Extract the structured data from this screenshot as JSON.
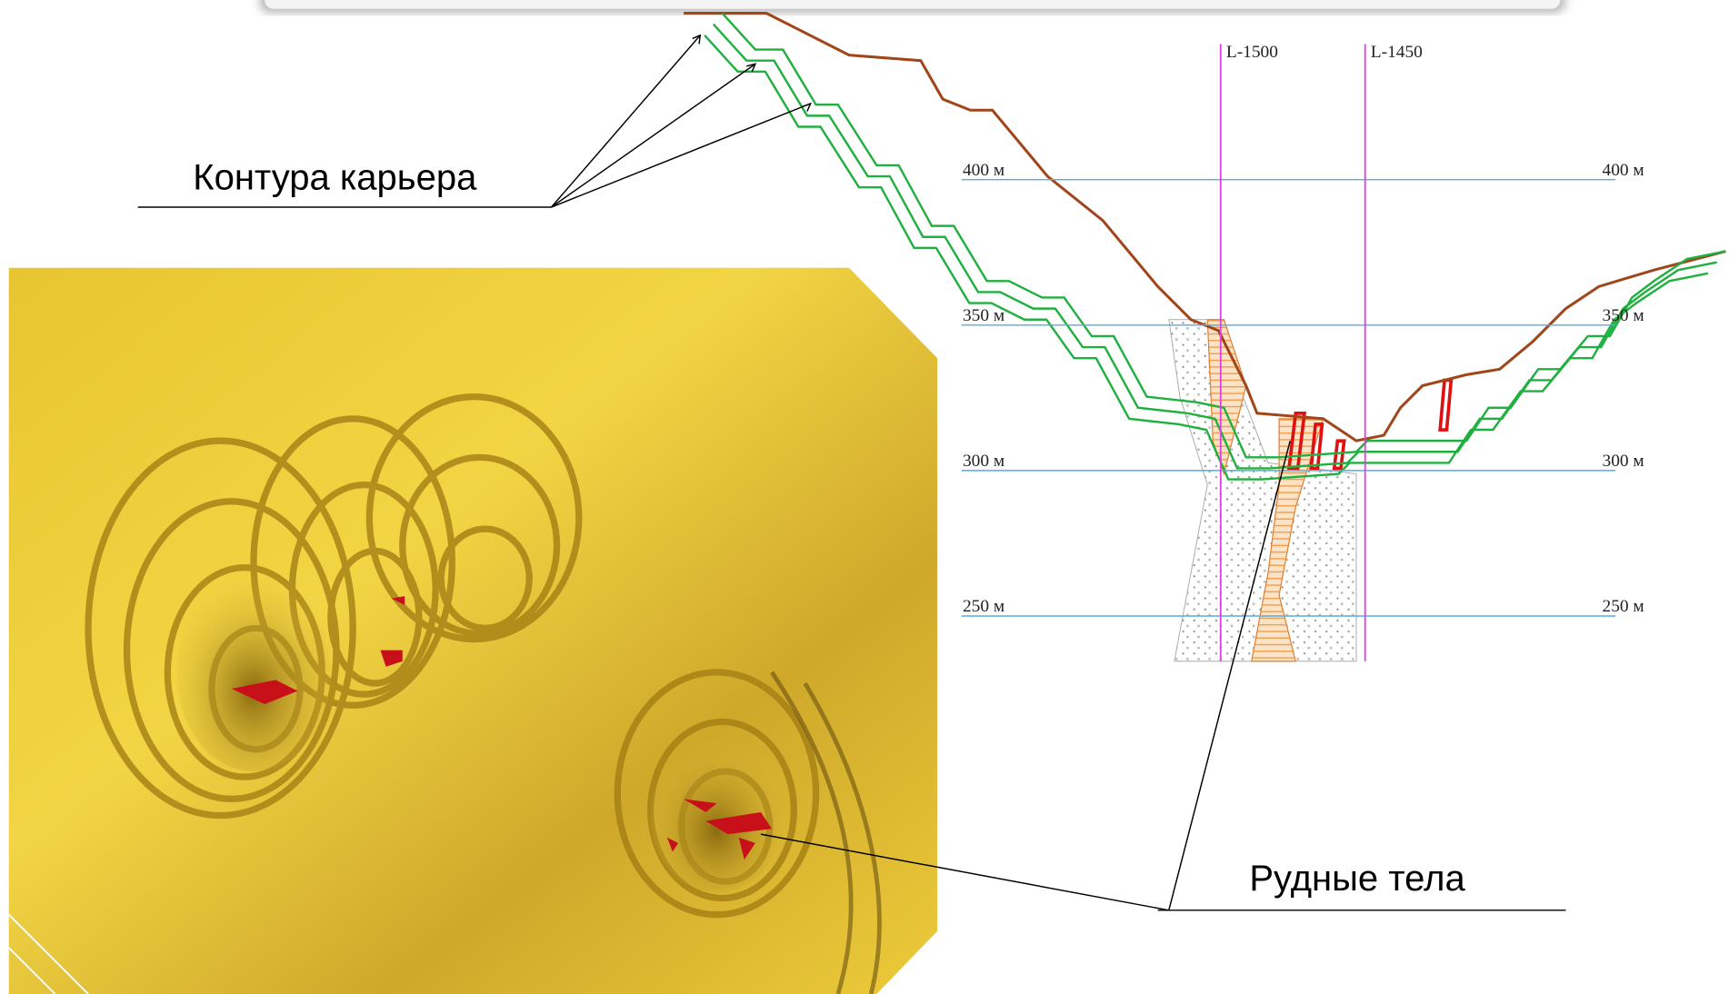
{
  "callouts": {
    "pit_contours": "Контура карьера",
    "ore_bodies": "Рудные тела"
  },
  "section": {
    "lines": [
      "L-1500",
      "L-1450"
    ],
    "levels": [
      "400 м",
      "350 м",
      "300 м",
      "250 м"
    ]
  }
}
